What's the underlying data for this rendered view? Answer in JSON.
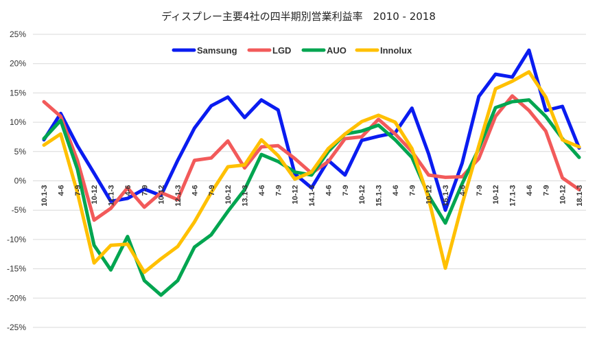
{
  "chart_data": {
    "type": "line",
    "title": "ディスプレー主要4社の四半期別営業利益率　2010 - 2018",
    "x": [
      "10.1-3",
      "4-6",
      "7-9",
      "10-12",
      "11.1-3",
      "4-6",
      "7-9",
      "10-12",
      "12.1-3",
      "4-6",
      "7-9",
      "10-12",
      "13.1-3",
      "4-6",
      "7-9",
      "10-12",
      "14.1-3",
      "4-6",
      "7-9",
      "10-12",
      "15.1-3",
      "4-6",
      "7-9",
      "10-12",
      "16.1-3",
      "4-6",
      "7-9",
      "10-12",
      "17.1-3",
      "4-6",
      "7-9",
      "10-12",
      "18.1-3"
    ],
    "ylim": [
      -25,
      25
    ],
    "yticks": [
      -25,
      -20,
      -15,
      -10,
      -5,
      0,
      5,
      10,
      15,
      20,
      25
    ],
    "ytick_labels": [
      "-25%",
      "-20%",
      "-15%",
      "-10%",
      "-5%",
      "0%",
      "5%",
      "10%",
      "15%",
      "20%",
      "25%"
    ],
    "legend_position": "top",
    "grid": true,
    "series": [
      {
        "name": "Samsung",
        "color": "#0a1cf0",
        "values": [
          7,
          11.5,
          6,
          1.3,
          -3.5,
          -3.0,
          -1.4,
          -2.5,
          3.5,
          9.0,
          12.8,
          14.3,
          10.8,
          13.8,
          12.1,
          1.2,
          -1.2,
          3.5,
          1.0,
          6.9,
          7.6,
          8.2,
          12.4,
          4.6,
          -5.0,
          3.0,
          14.4,
          18.2,
          17.7,
          22.3,
          12.0,
          12.7,
          5.6
        ]
      },
      {
        "name": "LGD",
        "color": "#f25a5a",
        "values": [
          13.5,
          11.0,
          3.5,
          -6.7,
          -4.7,
          -1.2,
          -4.5,
          -2.0,
          -3.2,
          3.5,
          3.9,
          6.8,
          2.2,
          5.8,
          6.0,
          3.8,
          1.3,
          3.3,
          7.2,
          7.5,
          10.5,
          8.0,
          5.0,
          1.0,
          0.6,
          0.7,
          3.8,
          11.0,
          14.5,
          12.0,
          8.5,
          0.5,
          -1.5
        ]
      },
      {
        "name": "AUO",
        "color": "#00a550",
        "values": [
          7.2,
          10.3,
          2.0,
          -11.0,
          -15.2,
          -9.5,
          -17.0,
          -19.5,
          -17.0,
          -11.3,
          -9.2,
          -5.2,
          -1.5,
          4.5,
          3.3,
          1.5,
          1.0,
          5.0,
          8.0,
          8.5,
          9.5,
          7.0,
          4.0,
          -2.5,
          -7.2,
          -0.5,
          5.5,
          12.5,
          13.5,
          13.8,
          11.0,
          7.2,
          4.0
        ]
      },
      {
        "name": "Innolux",
        "color": "#ffc000",
        "values": [
          6.1,
          8.0,
          -2.0,
          -14.0,
          -11.0,
          -10.8,
          -15.6,
          -13.3,
          -11.2,
          -7.0,
          -2.0,
          2.4,
          2.7,
          7.0,
          4.3,
          0.3,
          1.5,
          5.5,
          8.0,
          10.1,
          11.2,
          10.0,
          5.5,
          -3.0,
          -14.9,
          -4.0,
          6.0,
          15.7,
          17.0,
          18.6,
          14.3,
          7.0,
          5.8
        ]
      }
    ]
  }
}
